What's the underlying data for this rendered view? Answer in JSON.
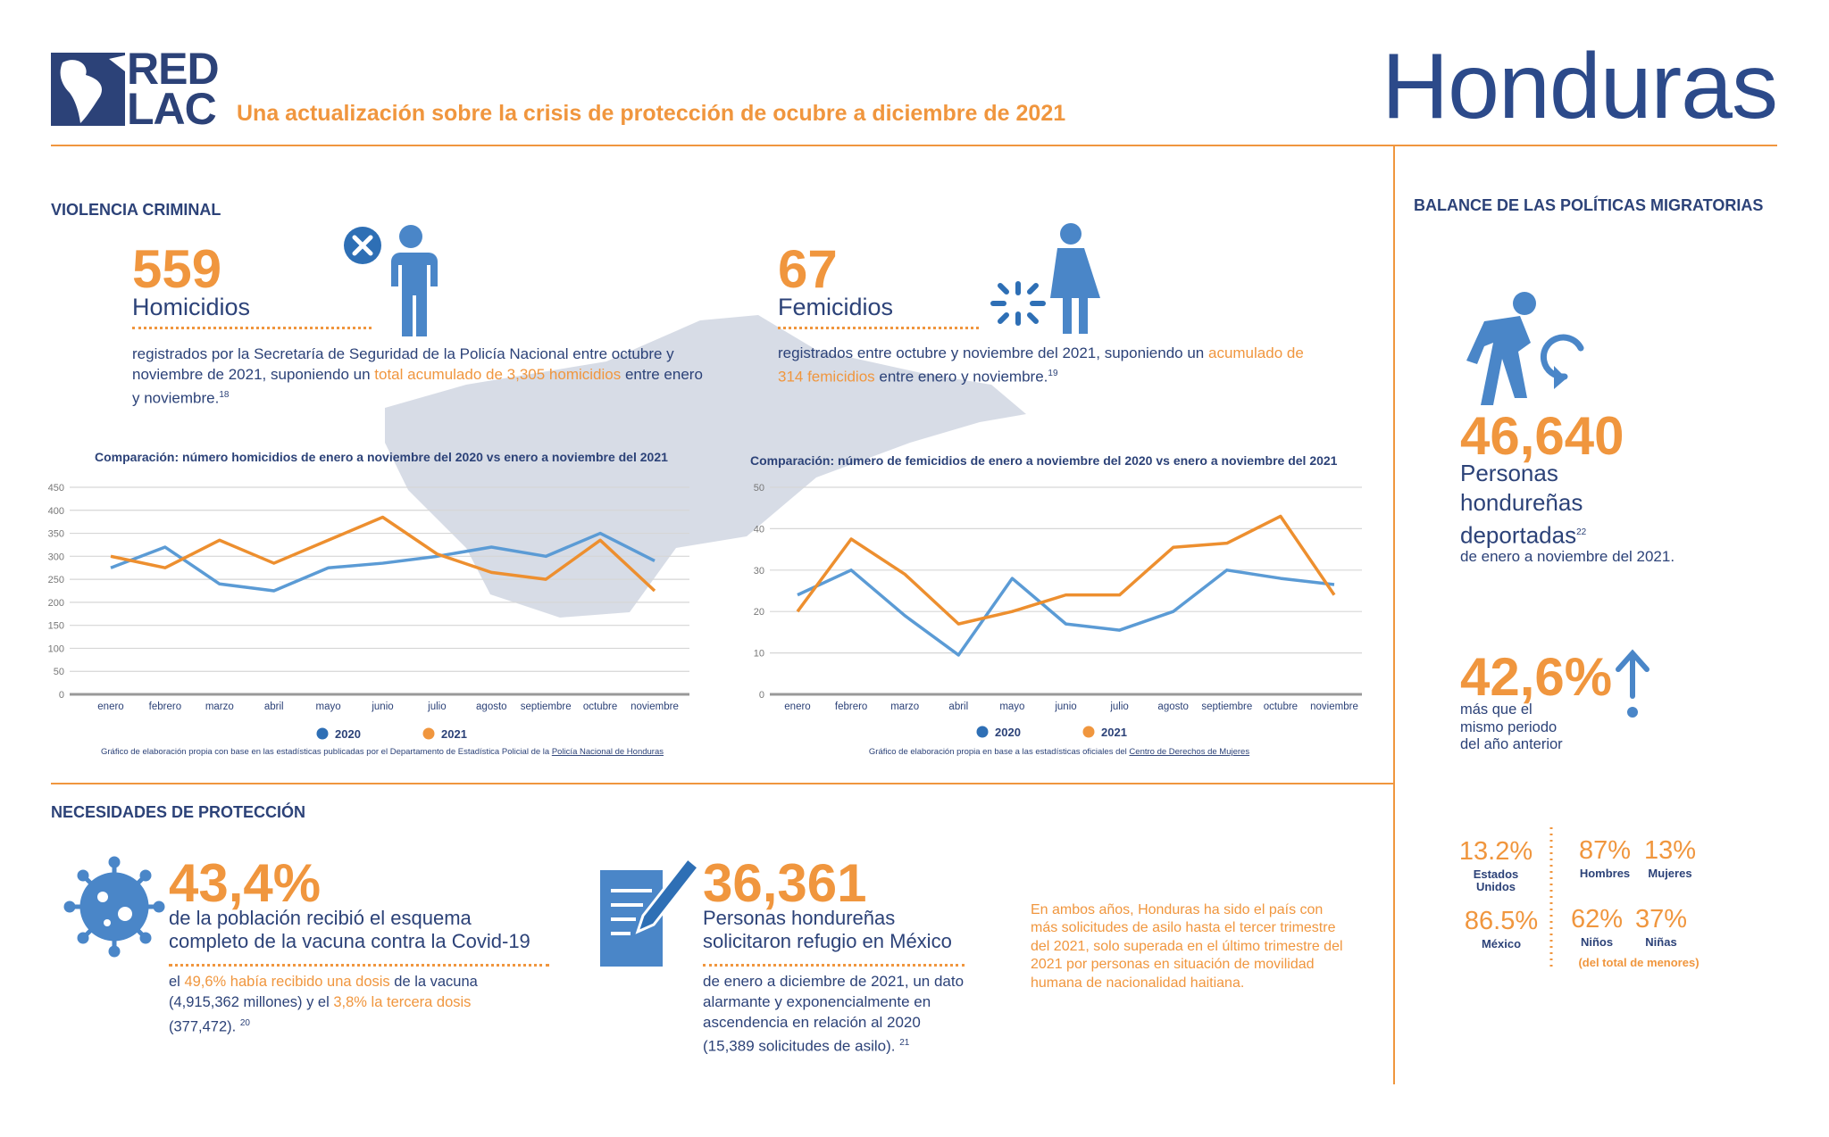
{
  "header": {
    "logo_top": "RED",
    "logo_bottom": "LAC",
    "subtitle": "Una actualización sobre la crisis de protección de ocubre a diciembre de 2021",
    "country": "Honduras"
  },
  "violencia": {
    "title": "VIOLENCIA CRIMINAL",
    "homicidios": {
      "number": "559",
      "label": "Homicidios",
      "text": [
        "registrados por la Secretaría de Seguridad de la Policía Nacional entre octubre y noviembre de 2021, suponiendo un ",
        "total acumulado de 3,305 homicidios",
        " entre enero y noviembre."
      ],
      "ref": "18"
    },
    "femicidios": {
      "number": "67",
      "label": "Femicidios",
      "text": [
        "registrados entre octubre y noviembre del 2021, suponiendo un ",
        "acumulado de 314 femicidios",
        " entre enero y noviembre."
      ],
      "ref": "19"
    }
  },
  "chart_data": [
    {
      "type": "line",
      "title": "Comparación: número homicidios de enero a noviembre del 2020 vs enero a noviembre del 2021",
      "categories": [
        "enero",
        "febrero",
        "marzo",
        "abril",
        "mayo",
        "junio",
        "julio",
        "agosto",
        "septiembre",
        "octubre",
        "noviembre"
      ],
      "series": [
        {
          "name": "2020",
          "color": "#5b9bd5",
          "legend_color": "#2e6fb5",
          "values": [
            275,
            320,
            240,
            225,
            275,
            285,
            300,
            320,
            300,
            350,
            290
          ]
        },
        {
          "name": "2021",
          "color": "#ed8f2f",
          "legend_color": "#f0963e",
          "values": [
            300,
            275,
            335,
            285,
            335,
            385,
            305,
            265,
            250,
            335,
            225
          ]
        }
      ],
      "ylim": [
        0,
        450
      ],
      "yticks": [
        0,
        50,
        100,
        150,
        200,
        250,
        300,
        350,
        400,
        450
      ],
      "grid": true,
      "source": [
        "Gráfico de elaboración propia con base en las estadísticas publicadas por el Departamento de Estadística Policial de la ",
        "Policía Nacional de Honduras"
      ]
    },
    {
      "type": "line",
      "title": "Comparación: número de femicidios de enero a noviembre del 2020 vs enero a noviembre del 2021",
      "categories": [
        "enero",
        "febrero",
        "marzo",
        "abril",
        "mayo",
        "junio",
        "julio",
        "agosto",
        "septiembre",
        "octubre",
        "noviembre"
      ],
      "series": [
        {
          "name": "2020",
          "color": "#5b9bd5",
          "legend_color": "#2e6fb5",
          "values": [
            24,
            30,
            19,
            9.5,
            28,
            17,
            15.5,
            20,
            30,
            28,
            26.5
          ]
        },
        {
          "name": "2021",
          "color": "#ed8f2f",
          "legend_color": "#f0963e",
          "values": [
            20,
            37.5,
            29,
            17,
            20,
            24,
            24,
            35.5,
            36.5,
            43,
            24
          ]
        }
      ],
      "ylim": [
        0,
        50
      ],
      "yticks": [
        0,
        10,
        20,
        30,
        40,
        50
      ],
      "grid": true,
      "source": [
        "Gráfico de elaboración propia en base a las estadísticas oficiales del ",
        "Centro de Derechos de Mujeres"
      ]
    }
  ],
  "proteccion": {
    "title": "NECESIDADES DE PROTECCIÓN",
    "vacuna": {
      "number": "43,4%",
      "label": "de la población recibió el esquema completo de la vacuna contra la Covid-19",
      "text": [
        "el ",
        "49,6% había recibido una dosis",
        " de la vacuna (4,915,362 millones) y el ",
        "3,8% la tercera dosis",
        " (377,472)."
      ],
      "ref": "20"
    },
    "refugio": {
      "number": "36,361",
      "label": "Personas hondureñas solicitaron refugio en México",
      "text": "de enero a diciembre de 2021, un dato alarmante y exponencialmente en ascendencia en relación al 2020 (15,389 solicitudes de asilo).",
      "ref": "21"
    },
    "note": "En ambos años, Honduras ha sido el país con más solicitudes de asilo hasta el tercer trimestre del 2021, solo superada en el último trimestre del 2021 por personas en situación de movilidad humana de nacionalidad haitiana."
  },
  "balance": {
    "title": "BALANCE DE LAS POLÍTICAS MIGRATORIAS",
    "deportados": {
      "number": "46,640",
      "label": "Personas hondureñas deportadas",
      "ref": "22",
      "text": "de enero a noviembre del 2021."
    },
    "aumento": {
      "number": "42,6%",
      "text": "más que el mismo periodo del año anterior"
    },
    "desglose": [
      {
        "value": "13.2%",
        "label": "Estados Unidos"
      },
      {
        "value": "86.5%",
        "label": "México"
      },
      {
        "value": "87%",
        "label": "Hombres"
      },
      {
        "value": "13%",
        "label": "Mujeres"
      },
      {
        "value": "62%",
        "label": "Niños"
      },
      {
        "value": "37%",
        "label": "Niñas"
      }
    ],
    "desglose_note": "(del total de menores)"
  }
}
